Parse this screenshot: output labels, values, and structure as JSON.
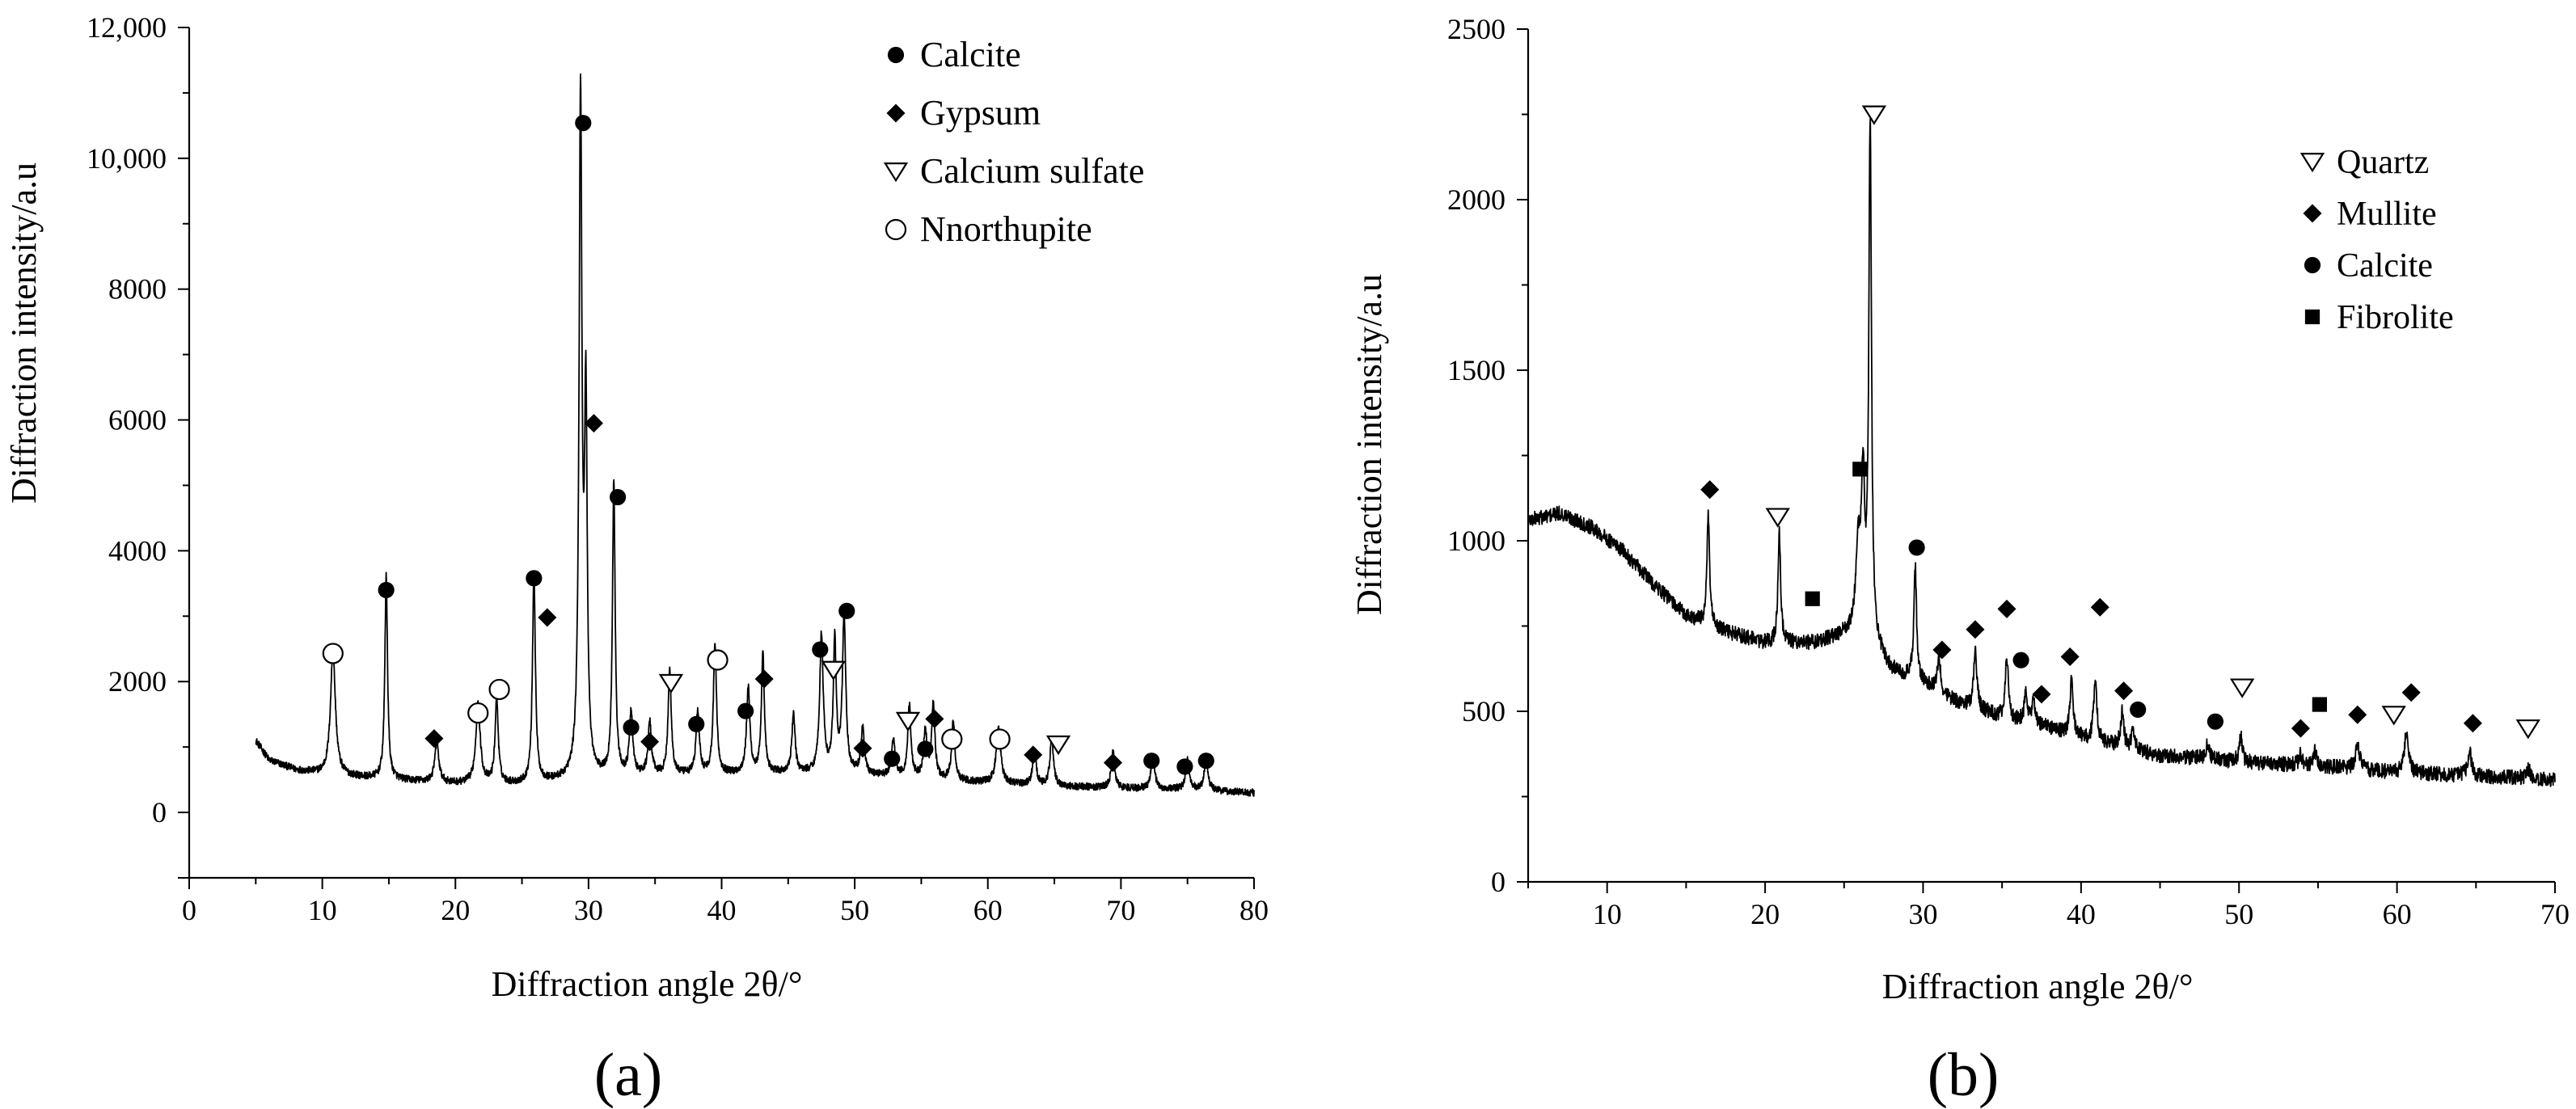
{
  "chart_data": [
    {
      "type": "line",
      "panel_label": "(a)",
      "title": "",
      "xlabel": "Diffraction angle 2θ/°",
      "ylabel": "Diffraction intensity/a.u",
      "xlim": [
        0,
        80
      ],
      "ylim": [
        -1000,
        12000
      ],
      "xticks": [
        0,
        10,
        20,
        30,
        40,
        50,
        60,
        70,
        80
      ],
      "yticks": [
        0,
        2000,
        4000,
        6000,
        8000,
        10000,
        12000
      ],
      "ytick_labels": [
        "0",
        "2000",
        "4000",
        "6000",
        "8000",
        "10,000",
        "12,000"
      ],
      "legend": [
        {
          "label": "Calcite",
          "marker": "filled-circle"
        },
        {
          "label": "Gypsum",
          "marker": "filled-diamond"
        },
        {
          "label": "Calcium sulfate",
          "marker": "open-triangle-down"
        },
        {
          "label": "Nnorthupite",
          "marker": "open-circle"
        }
      ],
      "baseline": [
        [
          5,
          1100
        ],
        [
          6,
          800
        ],
        [
          8,
          650
        ],
        [
          10,
          580
        ],
        [
          15,
          500
        ],
        [
          20,
          440
        ],
        [
          25,
          430
        ],
        [
          30,
          520
        ],
        [
          35,
          560
        ],
        [
          40,
          580
        ],
        [
          45,
          600
        ],
        [
          50,
          580
        ],
        [
          55,
          520
        ],
        [
          60,
          450
        ],
        [
          65,
          400
        ],
        [
          70,
          370
        ],
        [
          75,
          350
        ],
        [
          80,
          300
        ]
      ],
      "peaks": [
        {
          "x": 10.8,
          "y": 1900,
          "w": 0.22
        },
        {
          "x": 14.8,
          "y": 3100,
          "w": 0.12
        },
        {
          "x": 18.6,
          "y": 600,
          "w": 0.18
        },
        {
          "x": 21.7,
          "y": 1200,
          "w": 0.2
        },
        {
          "x": 23.1,
          "y": 1300,
          "w": 0.14
        },
        {
          "x": 25.9,
          "y": 3200,
          "w": 0.13
        },
        {
          "x": 29.4,
          "y": 10300,
          "w": 0.13
        },
        {
          "x": 29.8,
          "y": 5500,
          "w": 0.12
        },
        {
          "x": 31.9,
          "y": 4500,
          "w": 0.12
        },
        {
          "x": 33.2,
          "y": 950,
          "w": 0.15
        },
        {
          "x": 34.6,
          "y": 800,
          "w": 0.15
        },
        {
          "x": 36.1,
          "y": 1600,
          "w": 0.14
        },
        {
          "x": 38.2,
          "y": 950,
          "w": 0.15
        },
        {
          "x": 39.5,
          "y": 2000,
          "w": 0.14
        },
        {
          "x": 42.0,
          "y": 1300,
          "w": 0.15
        },
        {
          "x": 43.1,
          "y": 1800,
          "w": 0.13
        },
        {
          "x": 45.4,
          "y": 900,
          "w": 0.14
        },
        {
          "x": 47.5,
          "y": 2100,
          "w": 0.16
        },
        {
          "x": 48.5,
          "y": 2000,
          "w": 0.13
        },
        {
          "x": 49.2,
          "y": 2400,
          "w": 0.15
        },
        {
          "x": 50.6,
          "y": 700,
          "w": 0.15
        },
        {
          "x": 52.9,
          "y": 550,
          "w": 0.15
        },
        {
          "x": 54.1,
          "y": 1100,
          "w": 0.14
        },
        {
          "x": 55.3,
          "y": 700,
          "w": 0.15
        },
        {
          "x": 55.9,
          "y": 1150,
          "w": 0.14
        },
        {
          "x": 57.4,
          "y": 900,
          "w": 0.14
        },
        {
          "x": 60.8,
          "y": 850,
          "w": 0.2
        },
        {
          "x": 63.5,
          "y": 550,
          "w": 0.15
        },
        {
          "x": 64.8,
          "y": 750,
          "w": 0.15
        },
        {
          "x": 69.4,
          "y": 550,
          "w": 0.15
        },
        {
          "x": 72.4,
          "y": 500,
          "w": 0.16
        },
        {
          "x": 75.0,
          "y": 450,
          "w": 0.16
        },
        {
          "x": 76.4,
          "y": 500,
          "w": 0.16
        }
      ],
      "noise": 55,
      "annotations": [
        {
          "x": 10.8,
          "y": 2430,
          "marker": "open-circle"
        },
        {
          "x": 14.8,
          "y": 3400,
          "marker": "filled-circle"
        },
        {
          "x": 18.4,
          "y": 1130,
          "marker": "filled-diamond"
        },
        {
          "x": 21.7,
          "y": 1520,
          "marker": "open-circle"
        },
        {
          "x": 23.3,
          "y": 1880,
          "marker": "open-circle"
        },
        {
          "x": 25.9,
          "y": 3580,
          "marker": "filled-circle"
        },
        {
          "x": 29.6,
          "y": 10540,
          "marker": "filled-circle"
        },
        {
          "x": 30.4,
          "y": 5950,
          "marker": "filled-diamond"
        },
        {
          "x": 26.9,
          "y": 2980,
          "marker": "filled-diamond"
        },
        {
          "x": 32.2,
          "y": 4820,
          "marker": "filled-circle"
        },
        {
          "x": 33.2,
          "y": 1300,
          "marker": "filled-circle"
        },
        {
          "x": 34.6,
          "y": 1080,
          "marker": "filled-diamond"
        },
        {
          "x": 36.2,
          "y": 1980,
          "marker": "open-triangle-down"
        },
        {
          "x": 38.1,
          "y": 1350,
          "marker": "filled-circle"
        },
        {
          "x": 39.7,
          "y": 2330,
          "marker": "open-circle"
        },
        {
          "x": 41.8,
          "y": 1550,
          "marker": "filled-circle"
        },
        {
          "x": 43.2,
          "y": 2040,
          "marker": "filled-diamond"
        },
        {
          "x": 47.4,
          "y": 2490,
          "marker": "filled-circle"
        },
        {
          "x": 48.4,
          "y": 2180,
          "marker": "open-triangle-down"
        },
        {
          "x": 49.4,
          "y": 3080,
          "marker": "filled-circle"
        },
        {
          "x": 50.6,
          "y": 980,
          "marker": "filled-diamond"
        },
        {
          "x": 52.8,
          "y": 820,
          "marker": "filled-circle"
        },
        {
          "x": 54.0,
          "y": 1400,
          "marker": "open-triangle-down"
        },
        {
          "x": 55.3,
          "y": 970,
          "marker": "filled-circle"
        },
        {
          "x": 56.0,
          "y": 1430,
          "marker": "filled-diamond"
        },
        {
          "x": 57.3,
          "y": 1120,
          "marker": "open-circle"
        },
        {
          "x": 60.9,
          "y": 1120,
          "marker": "open-circle"
        },
        {
          "x": 63.4,
          "y": 880,
          "marker": "filled-diamond"
        },
        {
          "x": 65.3,
          "y": 1040,
          "marker": "open-triangle-down"
        },
        {
          "x": 69.4,
          "y": 760,
          "marker": "filled-diamond"
        },
        {
          "x": 72.3,
          "y": 790,
          "marker": "filled-circle"
        },
        {
          "x": 74.8,
          "y": 700,
          "marker": "filled-circle"
        },
        {
          "x": 76.4,
          "y": 790,
          "marker": "filled-circle"
        }
      ]
    },
    {
      "type": "line",
      "panel_label": "(b)",
      "title": "",
      "xlabel": "Diffraction angle 2θ/°",
      "ylabel": "Diffraction intensity/a.u",
      "xlim": [
        5,
        70
      ],
      "ylim": [
        0,
        2500
      ],
      "xticks": [
        10,
        20,
        30,
        40,
        50,
        60,
        70
      ],
      "yticks": [
        0,
        500,
        1000,
        1500,
        2000,
        2500
      ],
      "ytick_labels": [
        "0",
        "500",
        "1000",
        "1500",
        "2000",
        "2500"
      ],
      "legend": [
        {
          "label": "Quartz",
          "marker": "open-triangle-down"
        },
        {
          "label": "Mullite",
          "marker": "filled-diamond"
        },
        {
          "label": "Calcite",
          "marker": "filled-circle"
        },
        {
          "label": "Fibrolite",
          "marker": "filled-square"
        }
      ],
      "baseline": [
        [
          5,
          1060
        ],
        [
          7,
          1080
        ],
        [
          9,
          1040
        ],
        [
          11,
          970
        ],
        [
          13,
          870
        ],
        [
          15,
          780
        ],
        [
          17,
          740
        ],
        [
          20,
          700
        ],
        [
          23,
          700
        ],
        [
          25,
          720
        ],
        [
          26.5,
          710
        ],
        [
          28,
          620
        ],
        [
          30,
          580
        ],
        [
          32,
          530
        ],
        [
          35,
          480
        ],
        [
          38,
          450
        ],
        [
          40,
          420
        ],
        [
          42,
          400
        ],
        [
          45,
          370
        ],
        [
          48,
          360
        ],
        [
          50,
          350
        ],
        [
          55,
          340
        ],
        [
          60,
          320
        ],
        [
          65,
          310
        ],
        [
          70,
          300
        ]
      ],
      "peaks": [
        {
          "x": 16.4,
          "y": 320,
          "w": 0.1
        },
        {
          "x": 20.9,
          "y": 320,
          "w": 0.1
        },
        {
          "x": 25.9,
          "y": 250,
          "w": 0.2
        },
        {
          "x": 26.2,
          "y": 420,
          "w": 0.12
        },
        {
          "x": 26.65,
          "y": 1500,
          "w": 0.1
        },
        {
          "x": 29.5,
          "y": 340,
          "w": 0.1
        },
        {
          "x": 31.0,
          "y": 100,
          "w": 0.12
        },
        {
          "x": 33.3,
          "y": 170,
          "w": 0.12
        },
        {
          "x": 35.3,
          "y": 180,
          "w": 0.12
        },
        {
          "x": 36.5,
          "y": 80,
          "w": 0.12
        },
        {
          "x": 37.0,
          "y": 70,
          "w": 0.12
        },
        {
          "x": 39.4,
          "y": 160,
          "w": 0.12
        },
        {
          "x": 40.9,
          "y": 190,
          "w": 0.12
        },
        {
          "x": 42.6,
          "y": 100,
          "w": 0.12
        },
        {
          "x": 43.3,
          "y": 60,
          "w": 0.12
        },
        {
          "x": 48.0,
          "y": 40,
          "w": 0.15
        },
        {
          "x": 50.1,
          "y": 80,
          "w": 0.12
        },
        {
          "x": 53.9,
          "y": 30,
          "w": 0.12
        },
        {
          "x": 54.8,
          "y": 40,
          "w": 0.12
        },
        {
          "x": 57.5,
          "y": 80,
          "w": 0.15
        },
        {
          "x": 60.6,
          "y": 130,
          "w": 0.14
        },
        {
          "x": 64.6,
          "y": 70,
          "w": 0.14
        },
        {
          "x": 68.3,
          "y": 30,
          "w": 0.14
        }
      ],
      "noise": 22,
      "annotations": [
        {
          "x": 16.5,
          "y": 1150,
          "marker": "filled-diamond"
        },
        {
          "x": 20.8,
          "y": 1070,
          "marker": "open-triangle-down"
        },
        {
          "x": 23.0,
          "y": 830,
          "marker": "filled-square"
        },
        {
          "x": 26.0,
          "y": 1210,
          "marker": "filled-square"
        },
        {
          "x": 26.9,
          "y": 2250,
          "marker": "open-triangle-down"
        },
        {
          "x": 29.6,
          "y": 980,
          "marker": "filled-circle"
        },
        {
          "x": 31.2,
          "y": 680,
          "marker": "filled-diamond"
        },
        {
          "x": 33.3,
          "y": 740,
          "marker": "filled-diamond"
        },
        {
          "x": 35.3,
          "y": 800,
          "marker": "filled-diamond"
        },
        {
          "x": 36.2,
          "y": 650,
          "marker": "filled-circle"
        },
        {
          "x": 37.5,
          "y": 550,
          "marker": "filled-diamond"
        },
        {
          "x": 39.3,
          "y": 660,
          "marker": "filled-diamond"
        },
        {
          "x": 41.2,
          "y": 805,
          "marker": "filled-diamond"
        },
        {
          "x": 42.7,
          "y": 560,
          "marker": "filled-diamond"
        },
        {
          "x": 43.6,
          "y": 505,
          "marker": "filled-circle"
        },
        {
          "x": 48.5,
          "y": 470,
          "marker": "filled-circle"
        },
        {
          "x": 50.2,
          "y": 570,
          "marker": "open-triangle-down"
        },
        {
          "x": 53.9,
          "y": 450,
          "marker": "filled-diamond"
        },
        {
          "x": 55.1,
          "y": 520,
          "marker": "filled-square"
        },
        {
          "x": 57.5,
          "y": 490,
          "marker": "filled-diamond"
        },
        {
          "x": 59.8,
          "y": 490,
          "marker": "open-triangle-down"
        },
        {
          "x": 60.9,
          "y": 555,
          "marker": "filled-diamond"
        },
        {
          "x": 64.8,
          "y": 465,
          "marker": "filled-diamond"
        },
        {
          "x": 68.3,
          "y": 450,
          "marker": "open-triangle-down"
        }
      ]
    }
  ]
}
